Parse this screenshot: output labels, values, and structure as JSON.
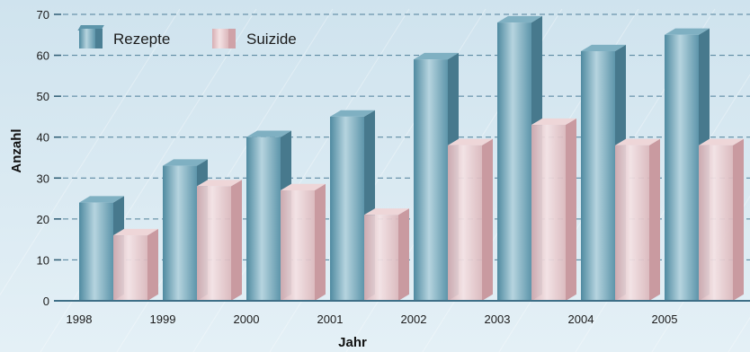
{
  "chart_data": {
    "type": "bar",
    "title": "",
    "xlabel": "Jahr",
    "ylabel": "Anzahl",
    "categories": [
      "1998",
      "1999",
      "2000",
      "2001",
      "2002",
      "2003",
      "2004",
      "2005"
    ],
    "series": [
      {
        "name": "Rezepte",
        "values": [
          24,
          33,
          40,
          45,
          59,
          68,
          61,
          65
        ]
      },
      {
        "name": "Suizide",
        "values": [
          16,
          28,
          27,
          21,
          38,
          43,
          38,
          38
        ]
      }
    ],
    "yticks": [
      0,
      10,
      20,
      30,
      40,
      50,
      60,
      70
    ],
    "ylim": [
      0,
      70
    ],
    "grid": true,
    "legend_position": "top-left",
    "colors": {
      "Rezepte": "#6d9fb2",
      "Suizide": "#e2c3c6",
      "grid": "#4f7f99"
    }
  }
}
